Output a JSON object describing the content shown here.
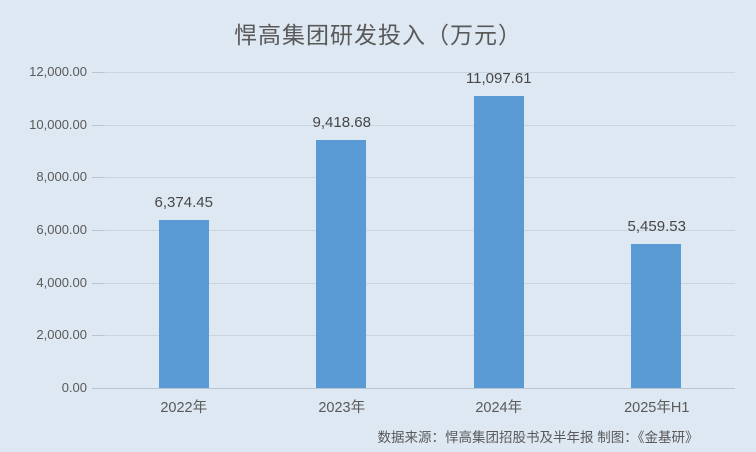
{
  "title": "悍高集团研发投入（万元）",
  "source_note": "数据来源：悍高集团招股书及半年报  制图：《金基研》",
  "colors": {
    "background": "#dde8f3",
    "bar": "#5b9bd5",
    "gridline": "#c9d5e1",
    "axis": "#b9c6d2",
    "axis_text": "#595959",
    "data_label_text": "#474747"
  },
  "chart_data": {
    "type": "bar",
    "title": "悍高集团研发投入（万元）",
    "categories": [
      "2022年",
      "2023年",
      "2024年",
      "2025年H1"
    ],
    "values": [
      6374.45,
      9418.68,
      11097.61,
      5459.53
    ],
    "data_labels": [
      "6,374.45",
      "9,418.68",
      "11,097.61",
      "5,459.53"
    ],
    "xlabel": "",
    "ylabel": "",
    "ylim": [
      0,
      12000
    ],
    "ytick_step": 2000,
    "ytick_labels_top_to_bottom": [
      "12,000.00",
      "10,000.00",
      "8,000.00",
      "6,000.00",
      "4,000.00",
      "2,000.00",
      "0.00"
    ],
    "grid": true,
    "legend": false,
    "series": [
      {
        "name": "研发投入（万元）",
        "values": [
          6374.45,
          9418.68,
          11097.61,
          5459.53
        ]
      }
    ],
    "annotations": "数据来源：悍高集团招股书及半年报  制图：《金基研》"
  }
}
